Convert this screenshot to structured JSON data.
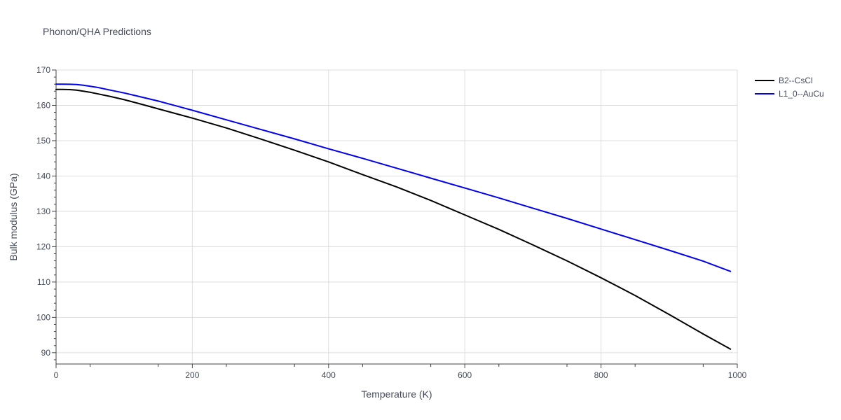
{
  "chart_data": {
    "type": "line",
    "title": "Phonon/QHA Predictions",
    "xlabel": "Temperature (K)",
    "ylabel": "Bulk modulus (GPa)",
    "xlim": [
      0,
      1000
    ],
    "ylim": [
      86.8,
      170
    ],
    "xticks": [
      0,
      200,
      400,
      600,
      800,
      1000
    ],
    "yticks": [
      90,
      100,
      110,
      120,
      130,
      140,
      150,
      160,
      170
    ],
    "xtick_labels": [
      "0",
      "200",
      "400",
      "600",
      "800",
      "1000"
    ],
    "ytick_labels": [
      "90",
      "100",
      "110",
      "120",
      "130",
      "140",
      "150",
      "160",
      "170"
    ],
    "grid": true,
    "legend_position": "top-right",
    "series": [
      {
        "name": "B2--CsCl",
        "color": "#000000",
        "x": [
          0,
          10,
          20,
          30,
          40,
          50,
          60,
          80,
          100,
          120,
          150,
          200,
          250,
          300,
          350,
          400,
          450,
          500,
          550,
          600,
          650,
          700,
          750,
          800,
          850,
          900,
          950,
          990
        ],
        "y": [
          164.5,
          164.5,
          164.45,
          164.3,
          164.0,
          163.7,
          163.3,
          162.5,
          161.6,
          160.6,
          159.0,
          156.4,
          153.6,
          150.5,
          147.3,
          144.0,
          140.4,
          136.9,
          133.1,
          129.0,
          124.9,
          120.5,
          116.0,
          111.2,
          106.2,
          100.8,
          95.3,
          91.0
        ]
      },
      {
        "name": "L1_0--AuCu",
        "color": "#0000ee",
        "x": [
          0,
          10,
          20,
          30,
          40,
          50,
          60,
          80,
          100,
          120,
          150,
          200,
          250,
          300,
          350,
          400,
          450,
          500,
          550,
          600,
          650,
          700,
          750,
          800,
          850,
          900,
          950,
          990
        ],
        "y": [
          166.0,
          166.0,
          165.95,
          165.9,
          165.7,
          165.4,
          165.1,
          164.3,
          163.5,
          162.6,
          161.2,
          158.6,
          155.9,
          153.2,
          150.5,
          147.7,
          145.0,
          142.2,
          139.4,
          136.6,
          133.8,
          130.9,
          128.0,
          125.0,
          122.0,
          119.0,
          115.9,
          113.0
        ]
      }
    ]
  }
}
